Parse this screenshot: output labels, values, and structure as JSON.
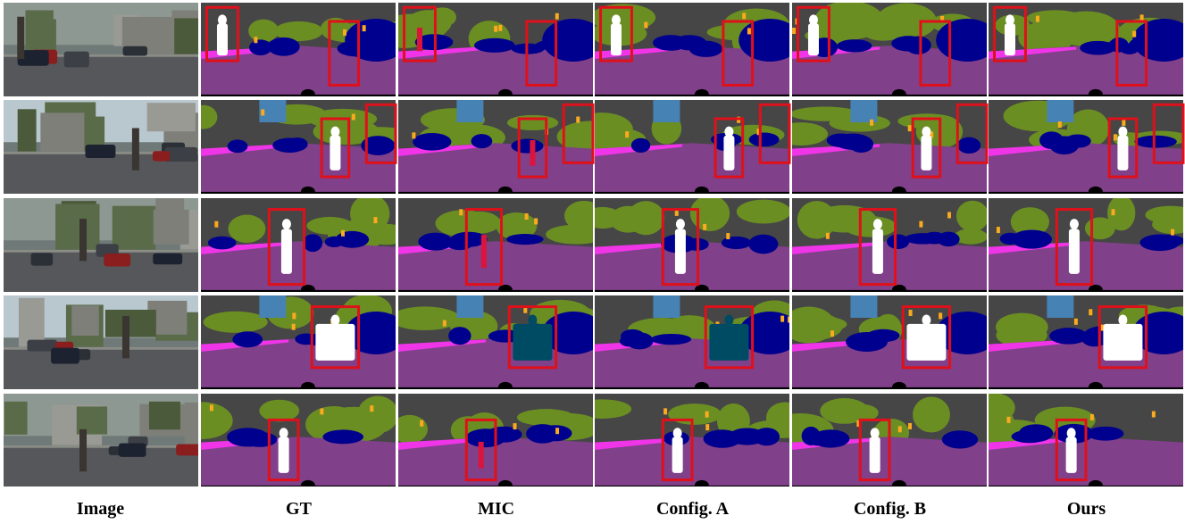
{
  "columns": [
    {
      "key": "image",
      "label": "Image"
    },
    {
      "key": "gt",
      "label": "GT"
    },
    {
      "key": "mic",
      "label": "MIC"
    },
    {
      "key": "configA",
      "label": "Config. A"
    },
    {
      "key": "configB",
      "label": "Config. B"
    },
    {
      "key": "ours",
      "label": "Ours"
    }
  ],
  "rows": 5,
  "colors": {
    "road": "#80408a",
    "sidewalk": "#f035e8",
    "building": "#464646",
    "vegetation": "#6b8e23",
    "sky": "#4682b4",
    "car": "#00008e",
    "person": "#ffffff",
    "truck": "#004b64",
    "traffic_light": "#faaa1e",
    "rider": "#dc143c",
    "void": "#000000",
    "highlight_box": "#e0101a"
  }
}
